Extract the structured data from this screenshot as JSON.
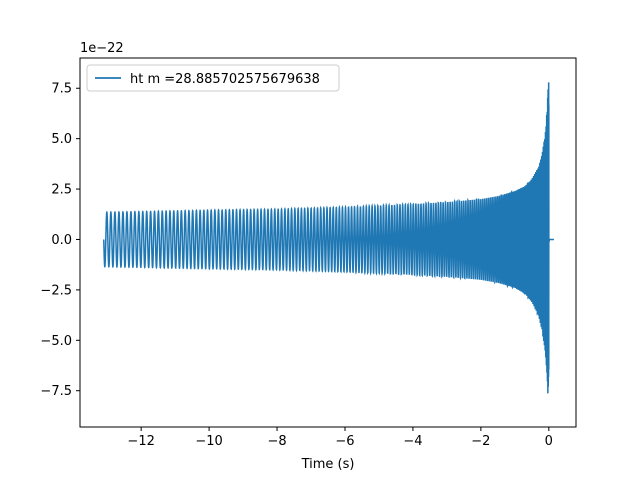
{
  "chart_data": {
    "type": "line",
    "title": "",
    "xlabel": "Time (s)",
    "ylabel": "",
    "y_offset_label": "1e−22",
    "xlim": [
      -13.8,
      0.8
    ],
    "ylim": [
      -9.3e-22,
      9e-22
    ],
    "grid": false,
    "legend_position": "upper left",
    "x_ticks": [
      -12,
      -10,
      -8,
      -6,
      -4,
      -2,
      0
    ],
    "x_tick_labels": [
      "−12",
      "−10",
      "−8",
      "−6",
      "−4",
      "−2",
      "0"
    ],
    "y_ticks": [
      7.5e-22,
      5e-22,
      2.5e-22,
      0,
      -2.5e-22,
      -5e-22,
      -7.5e-22
    ],
    "y_tick_labels": [
      "7.5",
      "5.0",
      "2.5",
      "0.0",
      "−2.5",
      "−5.0",
      "−7.5"
    ],
    "series": [
      {
        "name": "ht m =28.885702575679638",
        "color": "#1f77b4",
        "envelope": {
          "t": [
            -13.1,
            -12.0,
            -10.0,
            -8.0,
            -6.0,
            -4.0,
            -3.0,
            -2.0,
            -1.5,
            -1.0,
            -0.7,
            -0.5,
            -0.3,
            -0.2,
            -0.1,
            -0.05,
            0.0,
            0.02,
            0.05,
            0.15
          ],
          "upper": [
            1.35e-22,
            1.38e-22,
            1.45e-22,
            1.5e-22,
            1.6e-22,
            1.75e-22,
            1.85e-22,
            2e-22,
            2.15e-22,
            2.4e-22,
            2.65e-22,
            3e-22,
            3.6e-22,
            4.2e-22,
            5.3e-22,
            6.5e-22,
            8.2e-22,
            3e-23,
            2e-24,
            0.0
          ],
          "lower": [
            -1.35e-22,
            -1.38e-22,
            -1.45e-22,
            -1.5e-22,
            -1.6e-22,
            -1.75e-22,
            -1.85e-22,
            -2e-22,
            -2.15e-22,
            -2.4e-22,
            -2.7e-22,
            -3.1e-22,
            -3.8e-22,
            -4.5e-22,
            -5.7e-22,
            -7e-22,
            -8.5e-22,
            -3e-23,
            -2e-24,
            0.0
          ]
        },
        "cycle_count": 175
      }
    ]
  }
}
